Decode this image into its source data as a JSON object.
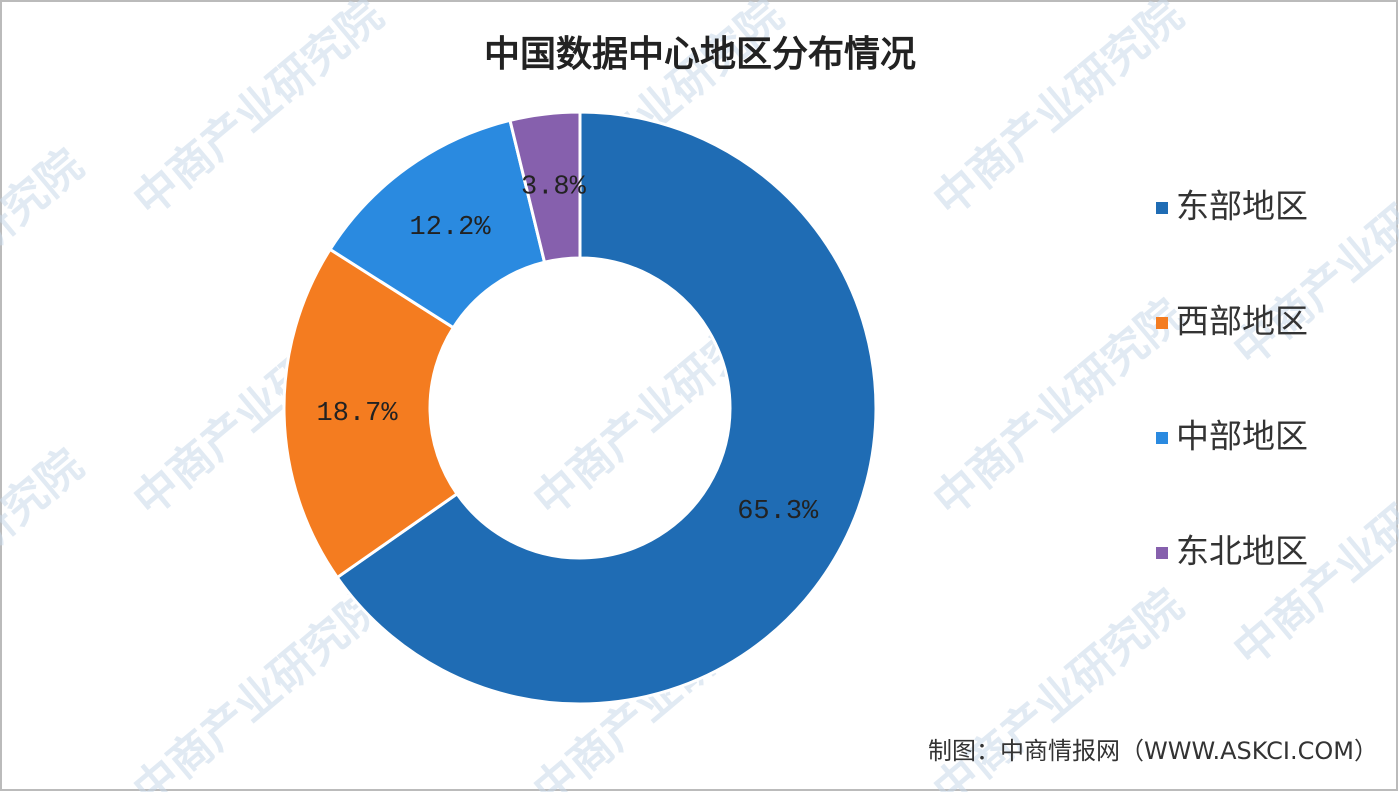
{
  "chart_data": {
    "type": "donut",
    "title": "中国数据中心地区分布情况",
    "categories": [
      "东部地区",
      "西部地区",
      "中部地区",
      "东北地区"
    ],
    "values": [
      65.3,
      18.7,
      12.2,
      3.8
    ],
    "value_labels": [
      "65.3%",
      "18.7%",
      "12.2%",
      "3.8%"
    ],
    "colors": [
      "#1f6cb4",
      "#f47c20",
      "#2a8ae0",
      "#8660ad"
    ],
    "legend": "right",
    "source": "制图：中商情报网（WWW.ASKCI.COM）",
    "watermark": "中商产业研究院"
  }
}
